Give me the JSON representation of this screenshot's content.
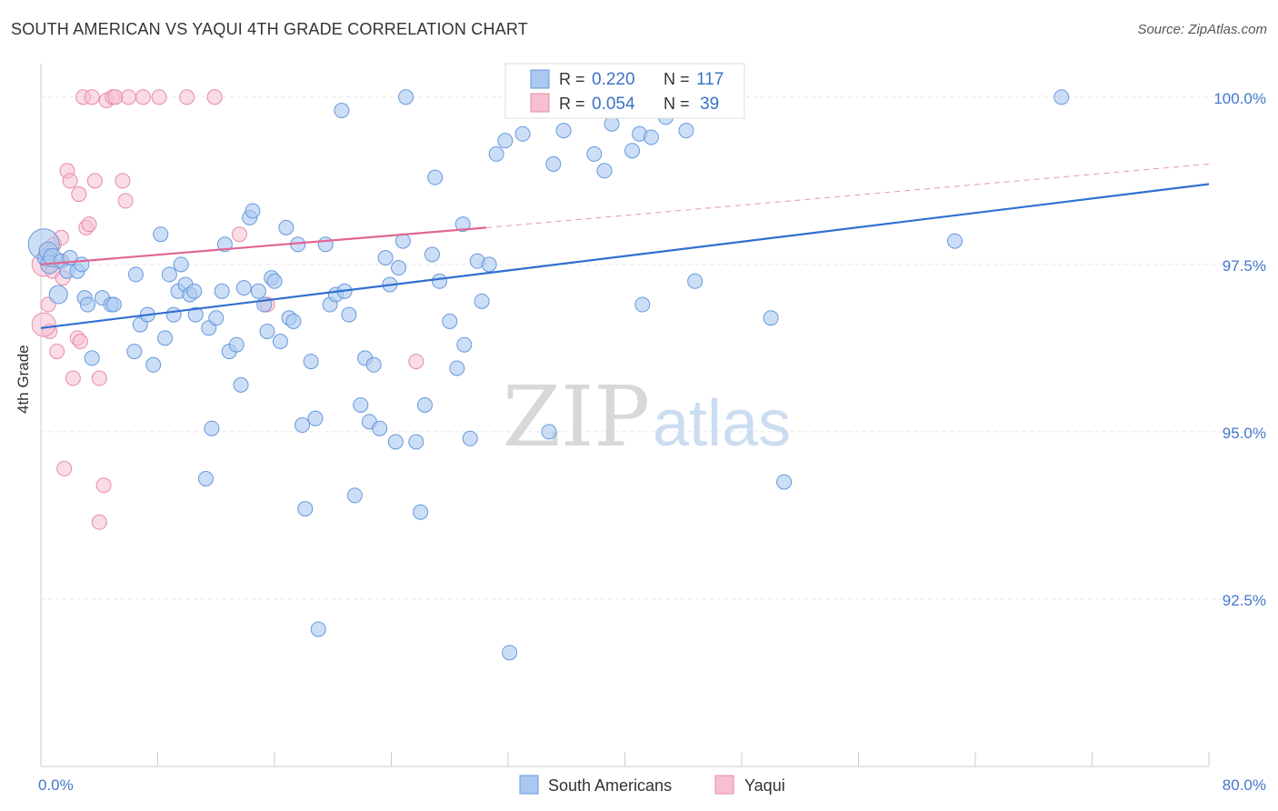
{
  "title": "SOUTH AMERICAN VS YAQUI 4TH GRADE CORRELATION CHART",
  "source": "Source: ZipAtlas.com",
  "watermark": {
    "zip": "ZIP",
    "atlas": "atlas"
  },
  "colors": {
    "blue_fill": "#aac8f0",
    "blue_stroke": "#6699dd",
    "blue_line": "#2f6fd0",
    "pink_fill": "#f6bfd2",
    "pink_stroke": "#e88aaa",
    "pink_line": "#e06692",
    "tick_text": "#4477cc",
    "grid": "#e6e6e6",
    "axis": "#cccccc"
  },
  "legend_top": [
    {
      "r_label": "R =",
      "r_value": "0.220",
      "n_label": "N =",
      "n_value": "117",
      "color_key": "blue"
    },
    {
      "r_label": "R =",
      "r_value": "0.054",
      "n_label": "N =",
      "n_value": "39",
      "color_key": "pink"
    }
  ],
  "chart_data": {
    "type": "scatter",
    "title": "SOUTH AMERICAN VS YAQUI 4TH GRADE CORRELATION CHART",
    "xlabel": "",
    "ylabel": "4th Grade",
    "xlim": [
      0,
      80
    ],
    "ylim": [
      90.0,
      100.5
    ],
    "x_tick_labels": [
      "0.0%",
      "80.0%"
    ],
    "y_ticks": [
      92.5,
      95.0,
      97.5,
      100.0
    ],
    "y_tick_labels": [
      "92.5%",
      "95.0%",
      "97.5%",
      "100.0%"
    ],
    "legend_position": "bottom-center",
    "series": [
      {
        "name": "South Americans",
        "color": "#aac8f0",
        "trend": {
          "x0": 0,
          "y0": 96.55,
          "x1": 80,
          "y1": 98.7
        },
        "points": [
          [
            0.2,
            97.8
          ],
          [
            0.4,
            97.6
          ],
          [
            0.5,
            97.7
          ],
          [
            0.6,
            97.5
          ],
          [
            0.8,
            97.6
          ],
          [
            1.2,
            97.05
          ],
          [
            1.4,
            97.55
          ],
          [
            1.8,
            97.4
          ],
          [
            2.0,
            97.6
          ],
          [
            2.5,
            97.4
          ],
          [
            2.8,
            97.5
          ],
          [
            3.0,
            97.0
          ],
          [
            3.2,
            96.9
          ],
          [
            3.5,
            96.1
          ],
          [
            4.2,
            97.0
          ],
          [
            4.8,
            96.9
          ],
          [
            5.0,
            96.9
          ],
          [
            6.4,
            96.2
          ],
          [
            6.5,
            97.35
          ],
          [
            6.8,
            96.6
          ],
          [
            7.3,
            96.75
          ],
          [
            7.7,
            96.0
          ],
          [
            8.2,
            97.95
          ],
          [
            8.5,
            96.4
          ],
          [
            8.8,
            97.35
          ],
          [
            9.1,
            96.75
          ],
          [
            9.4,
            97.1
          ],
          [
            9.6,
            97.5
          ],
          [
            9.9,
            97.2
          ],
          [
            10.2,
            97.05
          ],
          [
            10.5,
            97.1
          ],
          [
            10.6,
            96.75
          ],
          [
            11.3,
            94.3
          ],
          [
            11.5,
            96.55
          ],
          [
            11.7,
            95.05
          ],
          [
            12.0,
            96.7
          ],
          [
            12.4,
            97.1
          ],
          [
            12.6,
            97.8
          ],
          [
            12.9,
            96.2
          ],
          [
            13.4,
            96.3
          ],
          [
            13.7,
            95.7
          ],
          [
            13.9,
            97.15
          ],
          [
            14.3,
            98.2
          ],
          [
            14.5,
            98.3
          ],
          [
            14.9,
            97.1
          ],
          [
            15.3,
            96.9
          ],
          [
            15.5,
            96.5
          ],
          [
            15.8,
            97.3
          ],
          [
            16.0,
            97.25
          ],
          [
            16.4,
            96.35
          ],
          [
            16.8,
            98.05
          ],
          [
            17.0,
            96.7
          ],
          [
            17.3,
            96.65
          ],
          [
            17.6,
            97.8
          ],
          [
            17.9,
            95.1
          ],
          [
            18.1,
            93.85
          ],
          [
            18.5,
            96.05
          ],
          [
            18.8,
            95.2
          ],
          [
            19.0,
            92.05
          ],
          [
            19.5,
            97.8
          ],
          [
            19.8,
            96.9
          ],
          [
            20.2,
            97.05
          ],
          [
            20.6,
            99.8
          ],
          [
            20.8,
            97.1
          ],
          [
            21.1,
            96.75
          ],
          [
            21.5,
            94.05
          ],
          [
            21.9,
            95.4
          ],
          [
            22.2,
            96.1
          ],
          [
            22.5,
            95.15
          ],
          [
            22.8,
            96.0
          ],
          [
            23.2,
            95.05
          ],
          [
            23.6,
            97.6
          ],
          [
            23.9,
            97.2
          ],
          [
            24.3,
            94.85
          ],
          [
            24.5,
            97.45
          ],
          [
            24.8,
            97.85
          ],
          [
            25.0,
            100.0
          ],
          [
            25.7,
            94.85
          ],
          [
            26.0,
            93.8
          ],
          [
            26.3,
            95.4
          ],
          [
            26.8,
            97.65
          ],
          [
            27.0,
            98.8
          ],
          [
            27.3,
            97.25
          ],
          [
            28.0,
            96.65
          ],
          [
            28.5,
            95.95
          ],
          [
            28.9,
            98.1
          ],
          [
            29.0,
            96.3
          ],
          [
            29.4,
            94.9
          ],
          [
            29.9,
            97.55
          ],
          [
            30.2,
            96.95
          ],
          [
            30.7,
            97.5
          ],
          [
            31.2,
            99.15
          ],
          [
            31.8,
            99.35
          ],
          [
            32.1,
            91.7
          ],
          [
            32.3,
            99.85
          ],
          [
            33.0,
            99.45
          ],
          [
            34.8,
            95.0
          ],
          [
            35.1,
            99.0
          ],
          [
            35.8,
            99.5
          ],
          [
            36.2,
            100.0
          ],
          [
            37.9,
            99.15
          ],
          [
            38.6,
            98.9
          ],
          [
            39.1,
            99.6
          ],
          [
            40.5,
            99.2
          ],
          [
            41.0,
            99.45
          ],
          [
            41.2,
            96.9
          ],
          [
            41.8,
            99.4
          ],
          [
            42.2,
            99.85
          ],
          [
            42.5,
            100.0
          ],
          [
            42.8,
            99.7
          ],
          [
            43.5,
            99.8
          ],
          [
            44.2,
            99.5
          ],
          [
            44.8,
            97.25
          ],
          [
            62.6,
            97.85
          ],
          [
            50.0,
            96.7
          ],
          [
            50.9,
            94.25
          ],
          [
            69.9,
            100.0
          ]
        ]
      },
      {
        "name": "Yaqui",
        "color": "#f6bfd2",
        "trend": {
          "x0": 0,
          "y0": 97.5,
          "x1": 30.5,
          "y1": 98.05,
          "x_ext": 80,
          "y_ext": 99.0
        },
        "points": [
          [
            0.2,
            97.5
          ],
          [
            0.4,
            97.7
          ],
          [
            0.5,
            96.9
          ],
          [
            0.6,
            96.5
          ],
          [
            0.8,
            97.4
          ],
          [
            0.9,
            97.8
          ],
          [
            1.1,
            96.2
          ],
          [
            1.2,
            97.55
          ],
          [
            1.4,
            97.9
          ],
          [
            1.5,
            97.3
          ],
          [
            1.6,
            94.45
          ],
          [
            1.8,
            98.9
          ],
          [
            2.0,
            98.75
          ],
          [
            2.2,
            95.8
          ],
          [
            2.5,
            96.4
          ],
          [
            2.6,
            98.55
          ],
          [
            2.7,
            96.35
          ],
          [
            2.9,
            100.0
          ],
          [
            3.1,
            98.05
          ],
          [
            3.3,
            98.1
          ],
          [
            3.5,
            100.0
          ],
          [
            3.7,
            98.75
          ],
          [
            4.0,
            95.8
          ],
          [
            4.0,
            93.65
          ],
          [
            4.3,
            94.2
          ],
          [
            4.5,
            99.95
          ],
          [
            4.9,
            100.0
          ],
          [
            5.1,
            100.0
          ],
          [
            5.6,
            98.75
          ],
          [
            5.8,
            98.45
          ],
          [
            6.0,
            100.0
          ],
          [
            7.0,
            100.0
          ],
          [
            8.1,
            100.0
          ],
          [
            10.0,
            100.0
          ],
          [
            11.9,
            100.0
          ],
          [
            13.6,
            97.95
          ],
          [
            15.5,
            96.9
          ],
          [
            25.7,
            96.05
          ],
          [
            0.2,
            96.6
          ]
        ]
      }
    ]
  }
}
